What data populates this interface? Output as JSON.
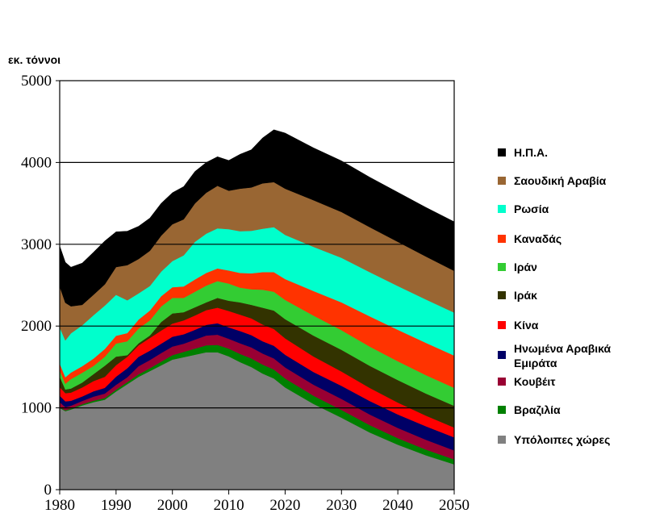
{
  "chart_data": {
    "type": "area",
    "stacked": true,
    "ylabel": "εκ. τόννοι",
    "xlim": [
      1980,
      2050
    ],
    "ylim": [
      0,
      5000
    ],
    "x_ticks": [
      1980,
      1990,
      2000,
      2010,
      2020,
      2030,
      2040,
      2050
    ],
    "y_ticks": [
      0,
      1000,
      2000,
      3000,
      4000,
      5000
    ],
    "grid": "horizontal",
    "legend_position": "right",
    "x": [
      1980,
      1981,
      1982,
      1984,
      1986,
      1988,
      1990,
      1992,
      1994,
      1996,
      1998,
      2000,
      2002,
      2004,
      2006,
      2008,
      2010,
      2012,
      2014,
      2016,
      2018,
      2020,
      2025,
      2030,
      2035,
      2040,
      2045,
      2050
    ],
    "series": [
      {
        "name": "Υπόλοιπες χώρες",
        "color": "#808080",
        "values": [
          1000,
          960,
          980,
          1030,
          1070,
          1100,
          1200,
          1290,
          1380,
          1450,
          1520,
          1590,
          1620,
          1650,
          1680,
          1680,
          1630,
          1560,
          1500,
          1420,
          1360,
          1250,
          1050,
          880,
          700,
          550,
          420,
          310
        ]
      },
      {
        "name": "Βραζιλία",
        "color": "#008000",
        "values": [
          10,
          10,
          12,
          15,
          18,
          20,
          22,
          25,
          30,
          35,
          45,
          55,
          65,
          75,
          85,
          90,
          95,
          100,
          105,
          110,
          110,
          110,
          100,
          95,
          90,
          80,
          70,
          60
        ]
      },
      {
        "name": "Κουβέιτ",
        "color": "#990033",
        "values": [
          60,
          40,
          35,
          40,
          50,
          55,
          60,
          60,
          100,
          100,
          105,
          105,
          100,
          110,
          120,
          125,
          120,
          130,
          135,
          135,
          135,
          135,
          135,
          135,
          130,
          125,
          120,
          110
        ]
      },
      {
        "name": "Ηνωμένα Αραβικά Εμιράτα",
        "color": "#000066",
        "values": [
          80,
          70,
          60,
          55,
          65,
          70,
          100,
          110,
          115,
          115,
          115,
          120,
          115,
          120,
          130,
          140,
          140,
          150,
          150,
          150,
          155,
          155,
          155,
          160,
          165,
          165,
          165,
          160
        ]
      },
      {
        "name": "Κίνα",
        "color": "#ff0000",
        "values": [
          105,
          100,
          100,
          110,
          125,
          135,
          140,
          140,
          140,
          155,
          160,
          160,
          170,
          175,
          180,
          190,
          200,
          200,
          205,
          205,
          205,
          200,
          190,
          175,
          160,
          145,
          130,
          120
        ]
      },
      {
        "name": "Ιράκ",
        "color": "#333300",
        "values": [
          130,
          45,
          50,
          60,
          85,
          135,
          105,
          20,
          25,
          30,
          105,
          125,
          100,
          100,
          95,
          120,
          125,
          150,
          165,
          205,
          225,
          235,
          255,
          265,
          270,
          275,
          270,
          265
        ]
      },
      {
        "name": "Ιράν",
        "color": "#33cc33",
        "values": [
          75,
          70,
          115,
          120,
          100,
          110,
          160,
          170,
          180,
          185,
          190,
          190,
          175,
          190,
          205,
          205,
          210,
          180,
          190,
          220,
          230,
          235,
          245,
          240,
          235,
          230,
          225,
          220
        ]
      },
      {
        "name": "Καναδάς",
        "color": "#ff3300",
        "values": [
          85,
          80,
          80,
          80,
          90,
          95,
          95,
          100,
          110,
          120,
          125,
          130,
          140,
          150,
          155,
          155,
          160,
          180,
          195,
          215,
          240,
          255,
          300,
          340,
          370,
          385,
          395,
          395
        ]
      },
      {
        "name": "Ρωσία",
        "color": "#00ffcc",
        "values": [
          440,
          450,
          480,
          500,
          530,
          530,
          500,
          400,
          320,
          300,
          300,
          320,
          380,
          460,
          480,
          490,
          505,
          510,
          520,
          530,
          550,
          540,
          540,
          545,
          540,
          535,
          530,
          525
        ]
      },
      {
        "name": "Σαουδική Αραβία",
        "color": "#996633",
        "values": [
          500,
          460,
          330,
          250,
          250,
          260,
          340,
          430,
          420,
          430,
          440,
          450,
          440,
          470,
          500,
          520,
          470,
          520,
          530,
          555,
          550,
          565,
          570,
          560,
          550,
          540,
          525,
          510
        ]
      },
      {
        "name": "Η.Π.Α.",
        "color": "#000000",
        "values": [
          495,
          495,
          478,
          510,
          520,
          530,
          430,
          415,
          400,
          400,
          395,
          385,
          400,
          390,
          370,
          355,
          370,
          420,
          460,
          555,
          640,
          680,
          640,
          625,
          610,
          605,
          600,
          600
        ]
      }
    ]
  }
}
